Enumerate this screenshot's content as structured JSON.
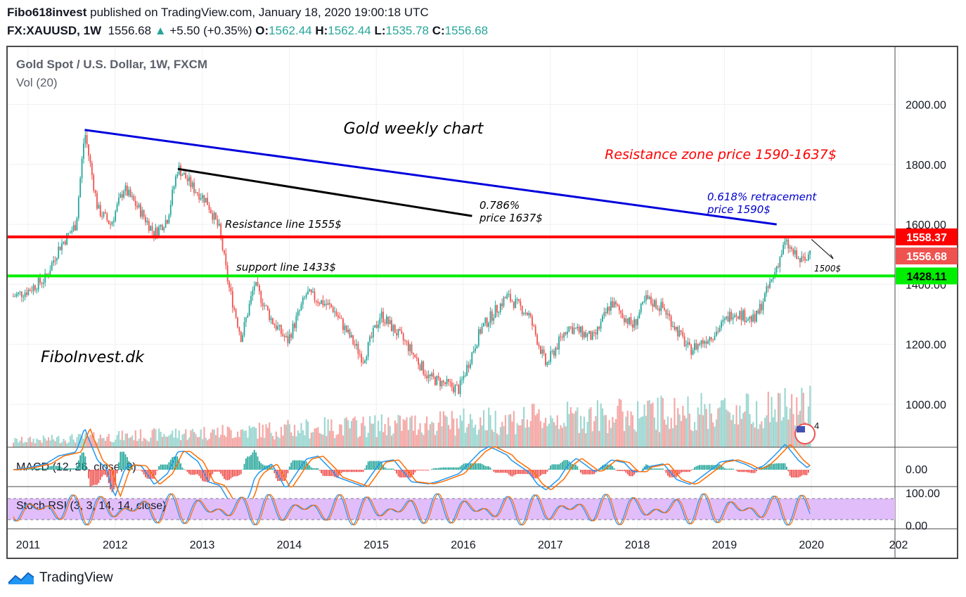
{
  "header": {
    "publisher": "Fibo618invest",
    "published_text": "published on TradingView.com, January 18, 2020 19:00:18 UTC",
    "symbol": "FX:XAUUSD, 1W",
    "last": "1556.68",
    "change": "+5.50 (+0.35%)",
    "o_label": "O:",
    "o": "1562.44",
    "h_label": "H:",
    "h": "1562.44",
    "l_label": "L:",
    "l": "1535.78",
    "c_label": "C:",
    "c": "1556.68"
  },
  "footer": {
    "brand": "TradingView"
  },
  "colors": {
    "up": "#26a69a",
    "down": "#ef5350",
    "resistance": "#ff0000",
    "support": "#00ee00",
    "trend_blue": "#0000dd",
    "rsi_band": "#e1bdfa",
    "macd_line": "#2196f3",
    "signal_line": "#ff6d00"
  },
  "chart_data": {
    "type": "candlestick",
    "title": "Gold Spot / U.S. Dollar, 1W, FXCM",
    "volume_label": "Vol (20)",
    "x_ticks": [
      "2011",
      "2012",
      "2013",
      "2014",
      "2015",
      "2016",
      "2017",
      "2018",
      "2019",
      "2020",
      "202"
    ],
    "y_ticks": [
      1000,
      1200,
      1400,
      1600,
      1800,
      2000
    ],
    "y_tick_labels": [
      "1000.00",
      "1200.00",
      "1400.00",
      "1600.00",
      "1800.00",
      "2000.00"
    ],
    "ylim": [
      850,
      2220
    ],
    "price_path": [
      {
        "t": 2010.83,
        "p": 1360
      },
      {
        "t": 2011.0,
        "p": 1380
      },
      {
        "t": 2011.2,
        "p": 1420
      },
      {
        "t": 2011.35,
        "p": 1520
      },
      {
        "t": 2011.55,
        "p": 1600
      },
      {
        "t": 2011.65,
        "p": 1910
      },
      {
        "t": 2011.8,
        "p": 1650
      },
      {
        "t": 2011.95,
        "p": 1600
      },
      {
        "t": 2012.1,
        "p": 1720
      },
      {
        "t": 2012.3,
        "p": 1640
      },
      {
        "t": 2012.45,
        "p": 1570
      },
      {
        "t": 2012.6,
        "p": 1620
      },
      {
        "t": 2012.72,
        "p": 1790
      },
      {
        "t": 2012.9,
        "p": 1720
      },
      {
        "t": 2013.05,
        "p": 1680
      },
      {
        "t": 2013.2,
        "p": 1580
      },
      {
        "t": 2013.3,
        "p": 1400
      },
      {
        "t": 2013.45,
        "p": 1220
      },
      {
        "t": 2013.6,
        "p": 1400
      },
      {
        "t": 2013.8,
        "p": 1280
      },
      {
        "t": 2013.98,
        "p": 1210
      },
      {
        "t": 2014.2,
        "p": 1370
      },
      {
        "t": 2014.5,
        "p": 1320
      },
      {
        "t": 2014.85,
        "p": 1150
      },
      {
        "t": 2015.05,
        "p": 1300
      },
      {
        "t": 2015.35,
        "p": 1200
      },
      {
        "t": 2015.6,
        "p": 1090
      },
      {
        "t": 2015.95,
        "p": 1050
      },
      {
        "t": 2016.2,
        "p": 1250
      },
      {
        "t": 2016.5,
        "p": 1360
      },
      {
        "t": 2016.75,
        "p": 1300
      },
      {
        "t": 2016.95,
        "p": 1130
      },
      {
        "t": 2017.2,
        "p": 1260
      },
      {
        "t": 2017.5,
        "p": 1220
      },
      {
        "t": 2017.7,
        "p": 1340
      },
      {
        "t": 2017.95,
        "p": 1260
      },
      {
        "t": 2018.1,
        "p": 1350
      },
      {
        "t": 2018.3,
        "p": 1320
      },
      {
        "t": 2018.6,
        "p": 1180
      },
      {
        "t": 2018.9,
        "p": 1240
      },
      {
        "t": 2019.1,
        "p": 1310
      },
      {
        "t": 2019.35,
        "p": 1280
      },
      {
        "t": 2019.55,
        "p": 1420
      },
      {
        "t": 2019.7,
        "p": 1540
      },
      {
        "t": 2019.85,
        "p": 1480
      },
      {
        "t": 2019.95,
        "p": 1480
      },
      {
        "t": 2020.0,
        "p": 1556
      }
    ],
    "annotations": [
      {
        "text": "Gold weekly chart",
        "color": "#000000"
      },
      {
        "text": "Resistance zone price 1590-1637$",
        "color": "#ff0000"
      },
      {
        "text": "0.618% retracement",
        "color": "#0000cc"
      },
      {
        "text": "price 1590$",
        "color": "#0000cc"
      },
      {
        "text": "0.786%",
        "color": "#000000"
      },
      {
        "text": "price 1637$",
        "color": "#000000"
      },
      {
        "text": "Resistance line 1555$",
        "color": "#000000"
      },
      {
        "text": "support line 1433$",
        "color": "#000000"
      },
      {
        "text": "1500$",
        "color": "#000000"
      },
      {
        "text": "FiboInvest.dk",
        "color": "#000000"
      }
    ],
    "trendlines": [
      {
        "name": "blue-trendline",
        "from": {
          "t": 2011.65,
          "p": 1915
        },
        "to": {
          "t": 2019.6,
          "p": 1600
        }
      },
      {
        "name": "black-trendline",
        "from": {
          "t": 2012.72,
          "p": 1785
        },
        "to": {
          "t": 2016.1,
          "p": 1628
        }
      }
    ],
    "levels": [
      {
        "name": "resistance",
        "price": 1558.37,
        "label": "1558.37",
        "color": "#ff0000"
      },
      {
        "name": "support",
        "price": 1428.11,
        "label": "1428.11",
        "color": "#00ee00"
      },
      {
        "name": "last",
        "price": 1556.68,
        "label": "1556.68",
        "color": "#ef5350"
      }
    ],
    "macd": {
      "label": "MACD (12, 26, close, 9)",
      "tick": "0.00"
    },
    "stoch_rsi": {
      "label": "Stoch RSI (3, 3, 14, 14, close)",
      "ticks": [
        "100.00",
        "0.00"
      ]
    },
    "events_badge": "4"
  }
}
